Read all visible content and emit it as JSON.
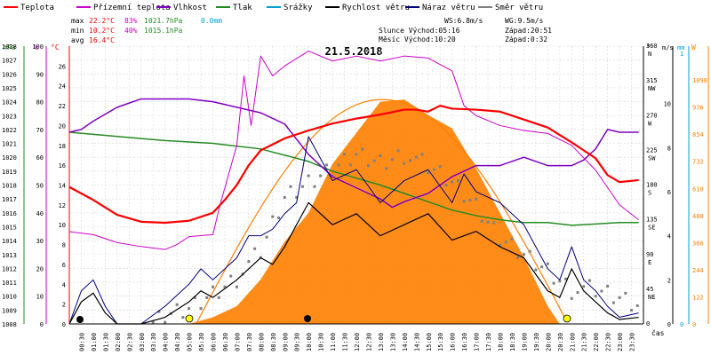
{
  "legend": {
    "items": [
      {
        "label": "Teplota",
        "color": "#ff0000"
      },
      {
        "label": "Přízemní teplota",
        "color": "#cc00cc"
      },
      {
        "label": "Vlhkost",
        "color": "#7f00bf"
      },
      {
        "label": "Tlak",
        "color": "#238b23"
      },
      {
        "label": "Srážky",
        "color": "#00a0d0"
      },
      {
        "label": "Rychlost větru",
        "color": "#000000"
      },
      {
        "label": "Náraz větru",
        "color": "#00007f"
      },
      {
        "label": "Směr větru",
        "color": "#808080"
      }
    ]
  },
  "stats": {
    "max_label": "max",
    "min_label": "min",
    "avg_label": "avg",
    "max_temp": "22.2°C",
    "max_hum": "83%",
    "max_press": "1021.7hPa",
    "max_rain": "0.0mm",
    "min_temp": "10.2°C",
    "min_hum": "40%",
    "min_press": "1015.1hPa",
    "avg_temp": "16.4°C",
    "ws": "WS:6.8m/s",
    "wg": "WG:9.5m/s",
    "sun": "Slunce Východ:05:16",
    "sun_set": "Západ:20:51",
    "moon": "Měsíc  Východ:10:20",
    "moon_set": "Západ:0:32"
  },
  "chart_data": {
    "type": "line",
    "title": "21.5.2018",
    "xlabel": "čas",
    "x_ticks": [
      "00:30",
      "01:00",
      "01:30",
      "02:00",
      "02:30",
      "03:00",
      "03:30",
      "04:00",
      "04:30",
      "05:00",
      "05:30",
      "06:00",
      "06:30",
      "07:00",
      "07:30",
      "08:00",
      "08:30",
      "09:00",
      "09:30",
      "10:00",
      "10:30",
      "11:00",
      "11:30",
      "12:00",
      "12:30",
      "13:00",
      "13:30",
      "14:00",
      "14:30",
      "15:00",
      "15:30",
      "16:00",
      "16:30",
      "17:00",
      "17:30",
      "18:00",
      "18:30",
      "19:00",
      "19:30",
      "20:00",
      "20:30",
      "21:00",
      "21:30",
      "22:00",
      "22:30",
      "23:00",
      "23:30"
    ],
    "axes": {
      "pressure": {
        "label": "hPa",
        "range": [
          1008,
          1028
        ],
        "color": "#238b23"
      },
      "humidity": {
        "label": "%",
        "range": [
          0,
          100
        ],
        "color": "#cc00cc"
      },
      "temperature": {
        "label": "°C",
        "range": [
          0,
          28
        ],
        "color": "#ff0000"
      },
      "direction": {
        "label": "°",
        "ticks": [
          "0",
          "45 NE",
          "90 E",
          "135 SE",
          "180 S",
          "225 SW",
          "270 W",
          "315 NW",
          "360 N"
        ]
      },
      "wind": {
        "label": "m/s",
        "range": [
          0,
          10
        ],
        "color": "#000000"
      },
      "rain": {
        "label": "mm",
        "range": [
          0,
          1
        ],
        "color": "#00a0d0"
      },
      "solar": {
        "label": "W",
        "ticks": [
          0,
          122,
          244,
          366,
          488,
          610,
          732,
          854,
          976,
          1098
        ],
        "color": "#ff8000"
      }
    },
    "series": [
      {
        "name": "Teplota",
        "unit": "°C",
        "color": "#ff0000",
        "x": [
          0,
          1,
          2,
          3,
          4,
          5,
          6,
          6.5,
          7,
          7.5,
          8,
          9,
          10,
          11,
          12,
          13,
          14,
          14.5,
          15,
          15.5,
          16,
          17,
          18,
          19,
          20,
          21,
          21.5,
          22,
          22.5,
          23,
          23.8
        ],
        "y": [
          13.8,
          12.5,
          11,
          10.3,
          10.2,
          10.4,
          11.2,
          12.5,
          14,
          16,
          17.5,
          18.7,
          19.5,
          20.2,
          20.7,
          21.1,
          21.6,
          21.6,
          21.4,
          22,
          21.7,
          21.6,
          21.4,
          20.6,
          19.8,
          18.3,
          17.5,
          16.7,
          15,
          14.3,
          14.5
        ]
      },
      {
        "name": "Přízemní teplota",
        "unit": "°C",
        "color": "#cc00cc",
        "x": [
          0,
          1,
          2,
          3,
          4,
          4.5,
          5,
          6,
          6.3,
          7,
          7.3,
          7.6,
          8,
          8.5,
          9,
          10,
          11,
          12,
          13,
          14,
          15,
          16,
          16.5,
          17,
          17.5,
          18,
          19,
          20,
          21,
          22,
          23,
          23.8
        ],
        "y": [
          9.3,
          9,
          8.2,
          7.8,
          7.5,
          8,
          8.8,
          9,
          12,
          18,
          25,
          20,
          27,
          25,
          26,
          27.5,
          26.5,
          27,
          26.5,
          27,
          26.8,
          25.5,
          22,
          21,
          20.5,
          20,
          19.5,
          19.2,
          18,
          15.5,
          12,
          10.5
        ]
      },
      {
        "name": "Vlhkost",
        "unit": "%",
        "color": "#7f00bf",
        "x": [
          0,
          0.5,
          1,
          2,
          3,
          4,
          5,
          6,
          7,
          8,
          9,
          10,
          11,
          12,
          13,
          13.5,
          14,
          15,
          16,
          17,
          18,
          19,
          20,
          21,
          21.5,
          22,
          22.5,
          23,
          23.8
        ],
        "y": [
          69,
          70,
          73,
          78,
          81,
          81,
          81,
          80,
          78,
          76,
          72,
          61,
          53,
          49,
          45,
          42,
          44,
          47,
          53,
          57,
          57,
          60,
          57,
          57,
          59,
          63,
          70,
          69,
          69
        ]
      },
      {
        "name": "Tlak",
        "unit": "hPa",
        "color": "#238b23",
        "x": [
          0,
          2,
          4,
          6,
          8,
          10,
          11,
          12,
          13,
          14,
          15,
          16,
          17,
          18,
          19,
          20,
          21,
          22,
          23,
          23.8
        ],
        "y": [
          1021.8,
          1021.5,
          1021.2,
          1021,
          1020.6,
          1019.7,
          1019,
          1018.5,
          1018,
          1017.4,
          1016.8,
          1016.2,
          1015.8,
          1015.5,
          1015.3,
          1015.3,
          1015.1,
          1015.2,
          1015.3,
          1015.3
        ]
      },
      {
        "name": "Rychlost větru",
        "unit": "m/s",
        "color": "#000000",
        "x": [
          0,
          0.5,
          1,
          1.5,
          2,
          3,
          4,
          5,
          5.5,
          6,
          7,
          7.5,
          8,
          8.5,
          9,
          10,
          11,
          12,
          13,
          14,
          15,
          16,
          17,
          18,
          19,
          20,
          20.5,
          21,
          21.5,
          22,
          22.5,
          23,
          23.8
        ],
        "y": [
          0,
          1,
          1.4,
          0.5,
          0,
          0,
          0.3,
          1,
          1.5,
          1.2,
          2,
          2.5,
          3,
          2.7,
          3.5,
          5.5,
          4.5,
          5,
          4,
          4.5,
          5,
          3.8,
          4.2,
          3.5,
          3,
          1.5,
          1.2,
          2.5,
          1.5,
          1,
          0.5,
          0.2,
          0.3
        ]
      },
      {
        "name": "Náraz větru",
        "unit": "m/s",
        "color": "#00007f",
        "x": [
          0,
          0.5,
          1,
          1.5,
          2,
          3,
          4,
          5,
          5.5,
          6,
          7,
          7.5,
          8,
          8.5,
          9,
          9.5,
          10,
          11,
          12,
          13,
          14,
          15,
          16,
          16.5,
          17,
          18,
          19,
          20,
          20.5,
          21,
          21.5,
          22,
          22.5,
          23,
          23.8
        ],
        "y": [
          0,
          1.5,
          2,
          0.8,
          0,
          0,
          0.8,
          1.8,
          2.5,
          2,
          3,
          4,
          4,
          4.3,
          5,
          5.5,
          8.5,
          6.5,
          7,
          5.5,
          6.5,
          7,
          5.5,
          6.8,
          6,
          5.5,
          4.5,
          2.5,
          2,
          3.5,
          2,
          1.5,
          0.8,
          0.3,
          0.5
        ]
      },
      {
        "name": "Směr větru",
        "unit": "°",
        "color": "#808080",
        "x": [
          3.5,
          4,
          5,
          6,
          7,
          8,
          9,
          10,
          11,
          12,
          13,
          14,
          15,
          16,
          17,
          18,
          19,
          20,
          21,
          22,
          23,
          23.8
        ],
        "y": [
          0,
          10,
          20,
          40,
          60,
          90,
          160,
          180,
          200,
          220,
          210,
          220,
          200,
          180,
          150,
          110,
          90,
          70,
          45,
          40,
          30,
          20
        ]
      },
      {
        "name": "Solar",
        "unit": "W",
        "color": "#ff8000",
        "x": [
          5,
          6,
          7,
          8,
          9,
          10,
          11,
          12,
          13,
          14,
          15,
          16,
          17,
          18,
          19,
          20,
          20.5
        ],
        "y": [
          0,
          30,
          80,
          200,
          370,
          500,
          720,
          860,
          1000,
          1010,
          940,
          880,
          700,
          500,
          300,
          80,
          0
        ]
      }
    ]
  }
}
